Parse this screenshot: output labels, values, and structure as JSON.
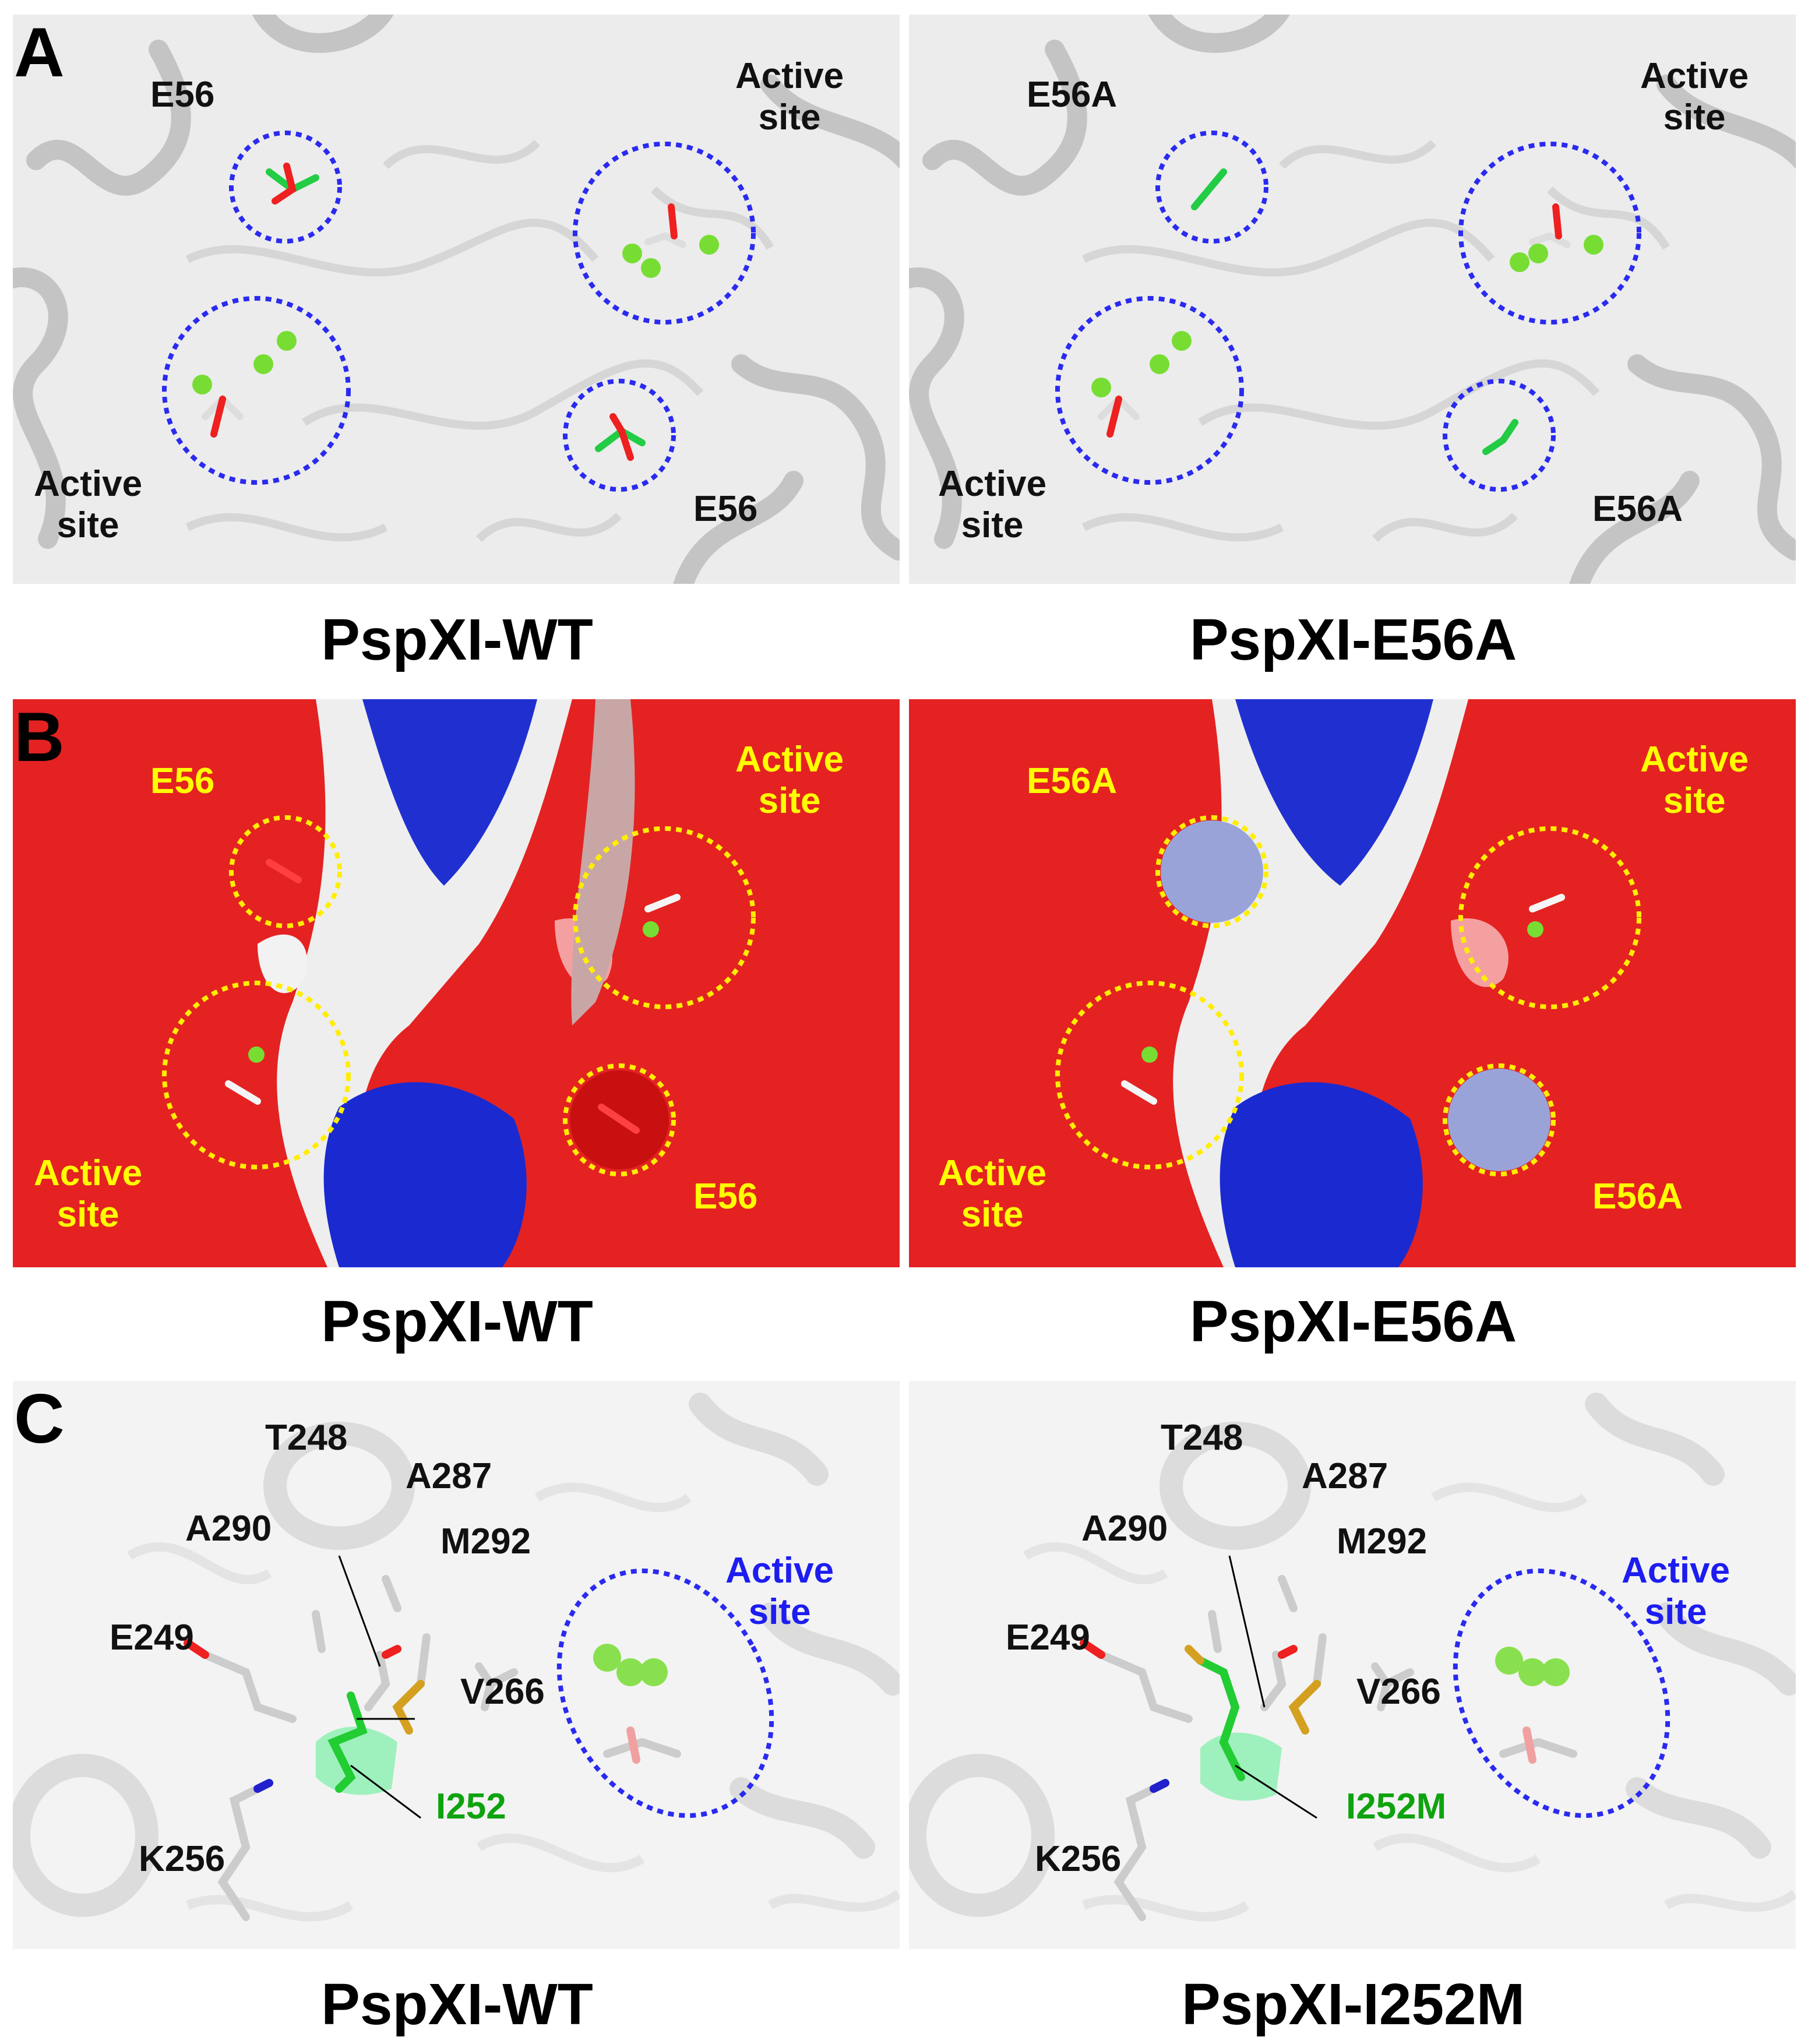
{
  "panels": {
    "A": {
      "letter": "A",
      "left": {
        "caption": "PspXI-WT",
        "label_mut_top": "E56",
        "label_mut_bottom": "E56",
        "label_active_top": "Active\nsite",
        "label_active_bottom": "Active\nsite"
      },
      "right": {
        "caption": "PspXI-E56A",
        "label_mut_top": "E56A",
        "label_mut_bottom": "E56A",
        "label_active_top": "Active\nsite",
        "label_active_bottom": "Active\nsite"
      }
    },
    "B": {
      "letter": "B",
      "left": {
        "caption": "PspXI-WT",
        "label_mut_top": "E56",
        "label_mut_bottom": "E56",
        "label_active_top": "Active\nsite",
        "label_active_bottom": "Active\nsite"
      },
      "right": {
        "caption": "PspXI-E56A",
        "label_mut_top": "E56A",
        "label_mut_bottom": "E56A",
        "label_active_top": "Active\nsite",
        "label_active_bottom": "Active\nsite"
      }
    },
    "C": {
      "letter": "C",
      "left": {
        "caption": "PspXI-WT",
        "residues": [
          "T248",
          "A287",
          "A290",
          "M292",
          "E249",
          "V266",
          "K256"
        ],
        "mutation": "I252",
        "active": "Active\nsite"
      },
      "right": {
        "caption": "PspXI-I252M",
        "residues": [
          "T248",
          "A287",
          "A290",
          "M292",
          "E249",
          "V266",
          "K256"
        ],
        "mutation": "I252M",
        "active": "Active\nsite"
      }
    }
  },
  "colors": {
    "circle_blue": "#2a2af0",
    "circle_yellow": "#ffee00",
    "carbon_green": "#22cc44",
    "oxygen_red": "#ee2020",
    "ion_green": "#77dd33",
    "surface_red": "#e82020",
    "surface_blue": "#1a2ad0",
    "sulfur_gold": "#d4a020"
  }
}
